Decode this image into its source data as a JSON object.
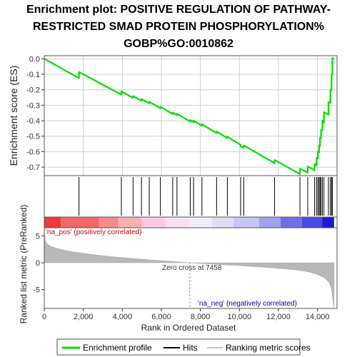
{
  "chart_data": {
    "type": "line",
    "title_lines": [
      "Enrichment plot: POSITIVE REGULATION OF PATHWAY-",
      "RESTRICTED SMAD PROTEIN PHOSPHORYLATION%",
      "GOBP%GO:0010862"
    ],
    "es_ylabel": "Enrichment score (ES)",
    "es_yticks": [
      0.0,
      -0.1,
      -0.2,
      -0.3,
      -0.4,
      -0.5,
      -0.6,
      -0.7
    ],
    "es_ylim": [
      -0.755,
      0.02
    ],
    "xlim": [
      0,
      15000
    ],
    "xticks": [
      0,
      2000,
      4000,
      6000,
      8000,
      10000,
      12000,
      14000
    ],
    "xtick_labels": [
      "0",
      "2,000",
      "4,000",
      "6,000",
      "8,000",
      "10,000",
      "12,000",
      "14,000"
    ],
    "xlabel": "Rank in Ordered Dataset",
    "rank_ylabel": "Ranked list metric (PreRanked)",
    "rank_yticks": [
      5,
      0,
      -5
    ],
    "rank_ylim": [
      -8.5,
      6.5
    ],
    "hits": [
      1780,
      3950,
      4550,
      4980,
      5380,
      5950,
      6580,
      6800,
      7480,
      7650,
      8080,
      8830,
      9380,
      10060,
      10220,
      11800,
      13100,
      13500,
      13850,
      13950,
      14020,
      14080,
      14130,
      14180,
      14250,
      14330,
      14560,
      14660,
      14720,
      14760
    ],
    "enrichment_curve": {
      "x": [
        0,
        1780,
        1781,
        3950,
        3951,
        4550,
        4551,
        4980,
        4981,
        5380,
        5381,
        5950,
        5951,
        6580,
        6581,
        6800,
        6801,
        7480,
        7481,
        7650,
        7651,
        8080,
        8081,
        8830,
        8831,
        9380,
        9381,
        10060,
        10061,
        10220,
        10221,
        11800,
        11801,
        13100,
        13101,
        13500,
        13501,
        13850,
        13851,
        13950,
        13951,
        14020,
        14021,
        14080,
        14081,
        14130,
        14131,
        14180,
        14181,
        14250,
        14251,
        14330,
        14331,
        14560,
        14561,
        14660,
        14661,
        14720,
        14721,
        14760,
        14761,
        14850
      ],
      "es": [
        0.0,
        -0.125,
        -0.085,
        -0.232,
        -0.21,
        -0.253,
        -0.24,
        -0.272,
        -0.26,
        -0.288,
        -0.277,
        -0.319,
        -0.31,
        -0.357,
        -0.347,
        -0.365,
        -0.355,
        -0.406,
        -0.395,
        -0.41,
        -0.4,
        -0.433,
        -0.423,
        -0.48,
        -0.47,
        -0.513,
        -0.503,
        -0.556,
        -0.566,
        -0.575,
        -0.56,
        -0.674,
        -0.654,
        -0.745,
        -0.71,
        -0.735,
        -0.696,
        -0.72,
        -0.68,
        -0.688,
        -0.64,
        -0.644,
        -0.6,
        -0.604,
        -0.56,
        -0.564,
        -0.51,
        -0.513,
        -0.46,
        -0.463,
        -0.4,
        -0.413,
        -0.345,
        -0.36,
        -0.28,
        -0.286,
        -0.2,
        -0.202,
        -0.1,
        -0.1,
        0.005,
        0.0
      ]
    },
    "ranked_metric": {
      "x": [
        0,
        60,
        150,
        300,
        600,
        1000,
        1500,
        2000,
        2500,
        3000,
        3500,
        4000,
        4500,
        5000,
        5500,
        6000,
        6500,
        7000,
        7458,
        8000,
        8500,
        9000,
        9500,
        10000,
        10500,
        11000,
        11500,
        12000,
        12500,
        13000,
        13300,
        13600,
        13900,
        14100,
        14300,
        14450,
        14550,
        14620,
        14680,
        14720,
        14760,
        14800,
        14850
      ],
      "values": [
        5.8,
        4.0,
        3.5,
        3.1,
        2.7,
        2.35,
        2.0,
        1.75,
        1.5,
        1.3,
        1.1,
        0.95,
        0.8,
        0.65,
        0.5,
        0.38,
        0.25,
        0.12,
        0.0,
        -0.12,
        -0.22,
        -0.33,
        -0.43,
        -0.53,
        -0.65,
        -0.78,
        -0.9,
        -1.05,
        -1.2,
        -1.4,
        -1.55,
        -1.75,
        -2.05,
        -2.35,
        -2.7,
        -3.1,
        -3.5,
        -3.9,
        -4.4,
        -5.0,
        -5.9,
        -7.3,
        -8.4
      ]
    },
    "zero_cross_label": "Zero cross at 7458",
    "zero_cross_x": 7458,
    "na_pos_label": "'na_pos' (positively correlated)",
    "na_neg_label": "'na_neg' (negatively correlated)",
    "heatmap_segments": [
      {
        "x0": 0,
        "x1": 850,
        "color": "#ee3a3a"
      },
      {
        "x0": 850,
        "x1": 2800,
        "color": "#f26868"
      },
      {
        "x0": 2800,
        "x1": 3800,
        "color": "#f58c8c"
      },
      {
        "x0": 3800,
        "x1": 5000,
        "color": "#f9b1b1"
      },
      {
        "x0": 5000,
        "x1": 6200,
        "color": "#fcc8e6"
      },
      {
        "x0": 6200,
        "x1": 7458,
        "color": "#fde0f0"
      },
      {
        "x0": 7458,
        "x1": 8600,
        "color": "#eeeefa"
      },
      {
        "x0": 8600,
        "x1": 9700,
        "color": "#dedef8"
      },
      {
        "x0": 9700,
        "x1": 11000,
        "color": "#c6c6f2"
      },
      {
        "x0": 11000,
        "x1": 12100,
        "color": "#a2a2ec"
      },
      {
        "x0": 12100,
        "x1": 13200,
        "color": "#7070e6"
      },
      {
        "x0": 13200,
        "x1": 14250,
        "color": "#4a4ae0"
      },
      {
        "x0": 14250,
        "x1": 14850,
        "color": "#1c1cd6"
      }
    ],
    "legend": [
      {
        "label": "Enrichment profile",
        "color": "#00e000"
      },
      {
        "label": "Hits",
        "color": "#000000"
      },
      {
        "label": "Ranking metric scores",
        "color": "#c8c8c8"
      }
    ],
    "colors": {
      "curve": "#00e000",
      "hit": "#000000",
      "metric_fill": "#b8b8b8",
      "grid": "#cfcfcf",
      "na_pos": "#cc0000",
      "na_neg": "#0000bb"
    }
  }
}
